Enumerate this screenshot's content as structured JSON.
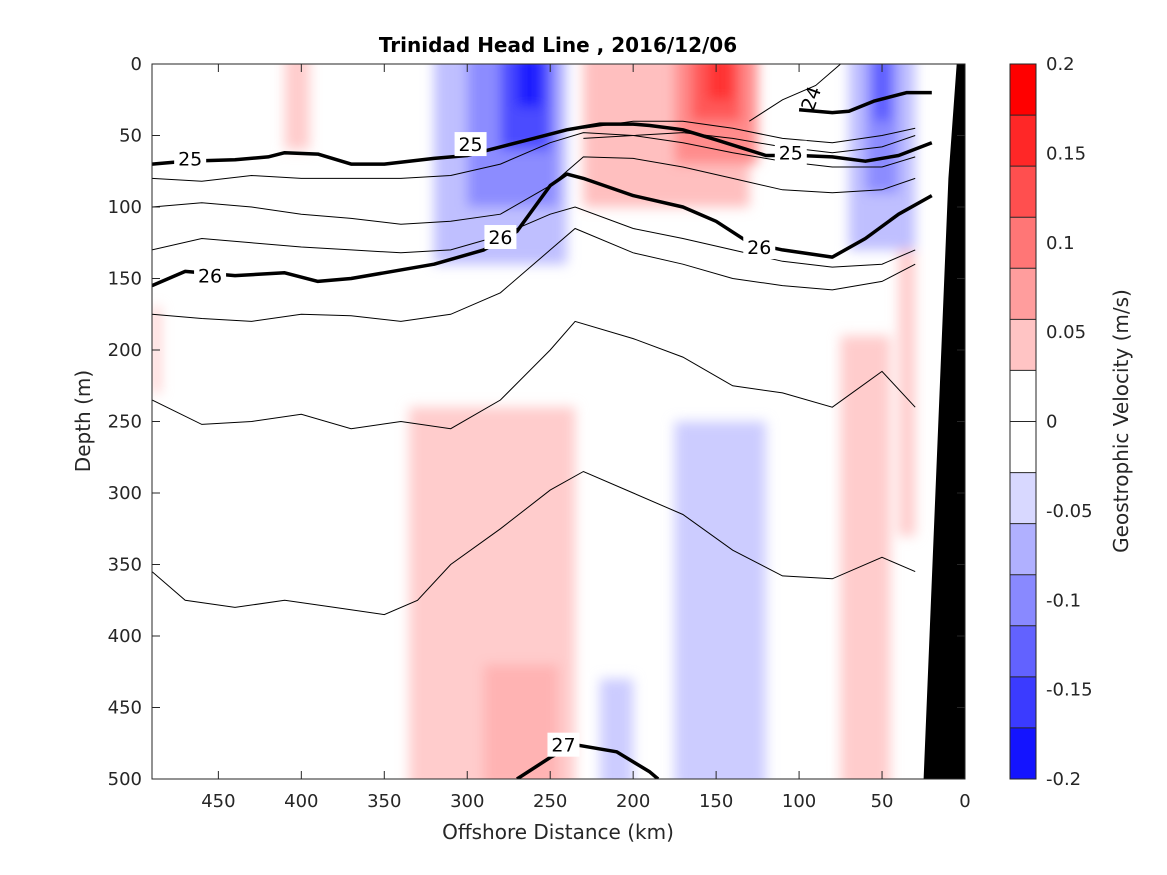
{
  "chart_data": {
    "type": "heatmap",
    "title": "Trinidad Head Line , 2016/12/06",
    "xlabel": "Offshore Distance (km)",
    "ylabel": "Depth (m)",
    "xlim": [
      490,
      0
    ],
    "ylim": [
      0,
      500
    ],
    "x_ticks": [
      "450",
      "400",
      "350",
      "300",
      "250",
      "200",
      "150",
      "100",
      "50",
      "0"
    ],
    "y_ticks": [
      "0",
      "50",
      "100",
      "150",
      "200",
      "250",
      "300",
      "350",
      "400",
      "450",
      "500"
    ],
    "colorbar": {
      "label": "Geostrophic Velocity (m/s)",
      "range": [
        -0.2,
        0.2
      ],
      "ticks": [
        "0.2",
        "0.15",
        "0.1",
        "0.05",
        "0",
        "-0.05",
        "-0.1",
        "-0.15",
        "-0.2"
      ],
      "levels_from_top": [
        "#ff0000",
        "#ff2727",
        "#ff4f4f",
        "#ff7676",
        "#ff9d9d",
        "#ffc4c4",
        "#ffffff",
        "#ffffff",
        "#d8d8ff",
        "#b0b0ff",
        "#8989ff",
        "#6262ff",
        "#3b3bff",
        "#1414ff"
      ]
    },
    "velocity_cells": [
      {
        "x": [
          320,
          240
        ],
        "y": [
          0,
          140
        ],
        "v": -0.05
      },
      {
        "x": [
          300,
          245
        ],
        "y": [
          0,
          100
        ],
        "v": -0.09
      },
      {
        "x": [
          280,
          250
        ],
        "y": [
          0,
          60
        ],
        "v": -0.14
      },
      {
        "x": [
          270,
          255
        ],
        "y": [
          0,
          30
        ],
        "v": -0.18
      },
      {
        "x": [
          230,
          130
        ],
        "y": [
          0,
          100
        ],
        "v": 0.05
      },
      {
        "x": [
          175,
          125
        ],
        "y": [
          0,
          70
        ],
        "v": 0.09
      },
      {
        "x": [
          165,
          135
        ],
        "y": [
          0,
          40
        ],
        "v": 0.13
      },
      {
        "x": [
          155,
          140
        ],
        "y": [
          0,
          25
        ],
        "v": 0.16
      },
      {
        "x": [
          70,
          30
        ],
        "y": [
          0,
          130
        ],
        "v": -0.05
      },
      {
        "x": [
          60,
          40
        ],
        "y": [
          0,
          90
        ],
        "v": -0.09
      },
      {
        "x": [
          55,
          45
        ],
        "y": [
          0,
          40
        ],
        "v": -0.13
      },
      {
        "x": [
          410,
          395
        ],
        "y": [
          0,
          60
        ],
        "v": 0.04
      },
      {
        "x": [
          490,
          485
        ],
        "y": [
          170,
          230
        ],
        "v": 0.04
      },
      {
        "x": [
          335,
          235
        ],
        "y": [
          240,
          500
        ],
        "v": 0.04
      },
      {
        "x": [
          290,
          245
        ],
        "y": [
          420,
          500
        ],
        "v": 0.06
      },
      {
        "x": [
          175,
          120
        ],
        "y": [
          250,
          500
        ],
        "v": -0.04
      },
      {
        "x": [
          220,
          200
        ],
        "y": [
          430,
          500
        ],
        "v": -0.04
      },
      {
        "x": [
          75,
          45
        ],
        "y": [
          190,
          500
        ],
        "v": 0.04
      },
      {
        "x": [
          40,
          30
        ],
        "y": [
          130,
          330
        ],
        "v": 0.04
      }
    ],
    "thin_isopycnals": [
      {
        "x": [
          490,
          460,
          430,
          400,
          370,
          340,
          310,
          280,
          250,
          230,
          200,
          170,
          140,
          110,
          80,
          50,
          30
        ],
        "y": [
          80,
          82,
          78,
          80,
          80,
          80,
          78,
          70,
          55,
          48,
          50,
          55,
          62,
          68,
          72,
          72,
          65
        ]
      },
      {
        "x": [
          490,
          460,
          430,
          400,
          370,
          340,
          310,
          280,
          250,
          230,
          200,
          170,
          140,
          110,
          80,
          50,
          30
        ],
        "y": [
          100,
          97,
          100,
          105,
          108,
          112,
          110,
          105,
          85,
          65,
          66,
          72,
          80,
          88,
          90,
          88,
          80
        ]
      },
      {
        "x": [
          490,
          460,
          430,
          400,
          370,
          340,
          310,
          280,
          250,
          235,
          200,
          170,
          140,
          110,
          80,
          50,
          30
        ],
        "y": [
          130,
          122,
          125,
          128,
          130,
          132,
          130,
          120,
          105,
          100,
          115,
          122,
          130,
          138,
          142,
          140,
          130
        ]
      },
      {
        "x": [
          490,
          460,
          430,
          400,
          370,
          340,
          310,
          280,
          250,
          235,
          200,
          170,
          140,
          110,
          80,
          50,
          30
        ],
        "y": [
          175,
          178,
          180,
          175,
          176,
          180,
          175,
          160,
          130,
          115,
          132,
          140,
          150,
          155,
          158,
          152,
          140
        ]
      },
      {
        "x": [
          490,
          460,
          430,
          400,
          370,
          340,
          310,
          280,
          250,
          235,
          200,
          170,
          140,
          110,
          80,
          50,
          30
        ],
        "y": [
          235,
          252,
          250,
          245,
          255,
          250,
          255,
          235,
          200,
          180,
          192,
          205,
          225,
          230,
          240,
          215,
          240
        ]
      },
      {
        "x": [
          490,
          470,
          440,
          410,
          380,
          350,
          330,
          310,
          280,
          250,
          230,
          200,
          170,
          140,
          110,
          80,
          50,
          30
        ],
        "y": [
          355,
          375,
          380,
          375,
          380,
          385,
          375,
          350,
          325,
          298,
          285,
          300,
          315,
          340,
          358,
          360,
          345,
          355
        ]
      },
      {
        "x": [
          130,
          110,
          90,
          75
        ],
        "y": [
          40,
          25,
          15,
          0
        ]
      },
      {
        "x": [
          230,
          200,
          170,
          140,
          110,
          80,
          50,
          30
        ],
        "y": [
          45,
          40,
          40,
          45,
          52,
          55,
          50,
          45
        ]
      },
      {
        "x": [
          230,
          200,
          170,
          140,
          110,
          80,
          50,
          30
        ],
        "y": [
          52,
          50,
          48,
          52,
          58,
          62,
          58,
          50
        ]
      }
    ],
    "thick_isopycnals": [
      {
        "x": [
          490,
          470,
          440,
          420,
          410,
          390,
          370,
          350,
          320,
          300,
          280,
          260,
          240,
          220,
          200,
          190,
          170,
          150,
          120,
          100,
          80,
          60,
          40,
          20
        ],
        "y": [
          70,
          68,
          67,
          65,
          62,
          63,
          70,
          70,
          66,
          64,
          58,
          52,
          46,
          42,
          42,
          43,
          46,
          53,
          64,
          64,
          65,
          68,
          64,
          55
        ],
        "label": "25",
        "label_x": [
          467,
          298,
          105
        ],
        "label_y": [
          66,
          56,
          62
        ]
      },
      {
        "x": [
          490,
          470,
          440,
          410,
          390,
          370,
          350,
          320,
          290,
          270,
          250,
          240,
          230,
          200,
          170,
          150,
          130,
          110,
          80,
          60,
          40,
          20
        ],
        "y": [
          155,
          145,
          148,
          146,
          152,
          150,
          146,
          140,
          130,
          117,
          85,
          77,
          80,
          92,
          100,
          110,
          125,
          130,
          135,
          122,
          105,
          92
        ],
        "label": "26",
        "label_x": [
          455,
          280,
          124
        ],
        "label_y": [
          148,
          121,
          128
        ]
      },
      {
        "x": [
          100,
          80,
          70,
          55,
          35,
          20
        ],
        "y": [
          32,
          34,
          33,
          26,
          20,
          20
        ]
      },
      {
        "x": [
          270,
          250,
          235,
          210,
          190,
          185
        ],
        "y": [
          500,
          485,
          476,
          481,
          495,
          500
        ],
        "label": "27",
        "label_x": [
          242
        ],
        "label_y": [
          476
        ]
      }
    ],
    "extra_labels": [
      {
        "text": "24",
        "x": 93,
        "y": 24
      }
    ],
    "bathymetry": {
      "x": [
        25,
        10,
        5,
        0
      ],
      "y": [
        500,
        80,
        0,
        0
      ],
      "color": "#000000"
    }
  }
}
